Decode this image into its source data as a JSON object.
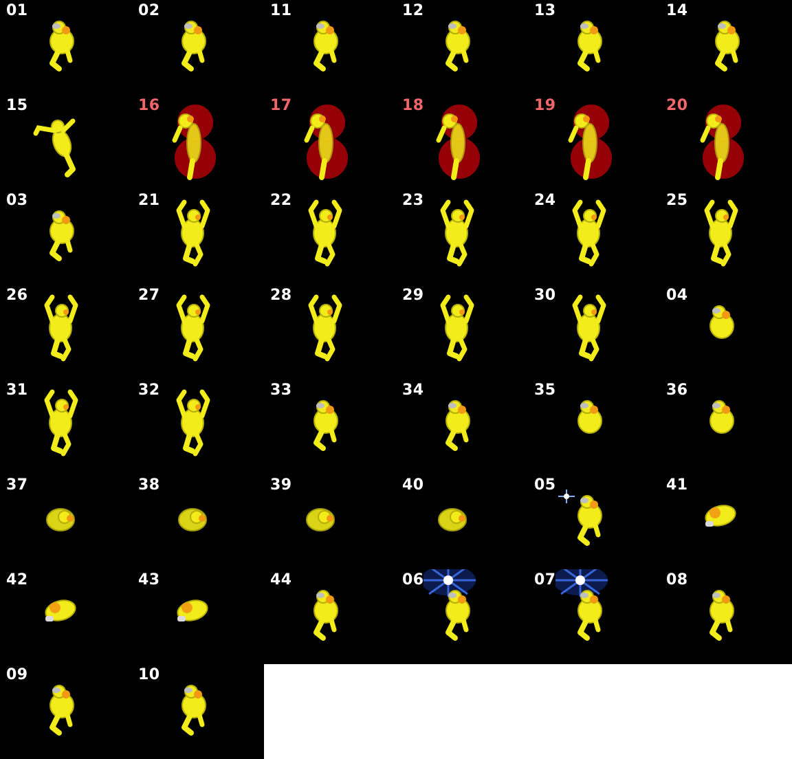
{
  "sheet": {
    "background": "#000000",
    "colors": {
      "normal_label": "#ffffff",
      "hit_label": "#f0666b",
      "body": "#f2ec1a",
      "body_shade": "#b6ae0a",
      "head_accent": "#f39a14",
      "hitbox": "#c8000a",
      "flash": "#3d6de8"
    },
    "frames": [
      {
        "label": "01",
        "pose": "crouch",
        "effect": "none"
      },
      {
        "label": "02",
        "pose": "crouch",
        "effect": "none"
      },
      {
        "label": "11",
        "pose": "crouch",
        "effect": "none"
      },
      {
        "label": "12",
        "pose": "crouch",
        "effect": "none"
      },
      {
        "label": "13",
        "pose": "crouch",
        "effect": "none"
      },
      {
        "label": "14",
        "pose": "crouch-lean",
        "effect": "none"
      },
      {
        "label": "15",
        "pose": "reach",
        "effect": "none"
      },
      {
        "label": "16",
        "pose": "stand",
        "effect": "hitbox"
      },
      {
        "label": "17",
        "pose": "stand",
        "effect": "hitbox"
      },
      {
        "label": "18",
        "pose": "stand",
        "effect": "hitbox"
      },
      {
        "label": "19",
        "pose": "stand",
        "effect": "hitbox"
      },
      {
        "label": "20",
        "pose": "stand",
        "effect": "hitbox"
      },
      {
        "label": "03",
        "pose": "crouch",
        "effect": "none"
      },
      {
        "label": "21",
        "pose": "arms-up",
        "effect": "none"
      },
      {
        "label": "22",
        "pose": "arms-up",
        "effect": "none"
      },
      {
        "label": "23",
        "pose": "arms-up",
        "effect": "none"
      },
      {
        "label": "24",
        "pose": "arms-up",
        "effect": "none"
      },
      {
        "label": "25",
        "pose": "arms-up",
        "effect": "none"
      },
      {
        "label": "26",
        "pose": "arms-up",
        "effect": "none"
      },
      {
        "label": "27",
        "pose": "arms-up",
        "effect": "none"
      },
      {
        "label": "28",
        "pose": "arms-up",
        "effect": "none"
      },
      {
        "label": "29",
        "pose": "arms-up",
        "effect": "none"
      },
      {
        "label": "30",
        "pose": "arms-up",
        "effect": "none"
      },
      {
        "label": "04",
        "pose": "curl",
        "effect": "none"
      },
      {
        "label": "31",
        "pose": "arms-up",
        "effect": "none"
      },
      {
        "label": "32",
        "pose": "arms-up",
        "effect": "none"
      },
      {
        "label": "33",
        "pose": "crouch",
        "effect": "none"
      },
      {
        "label": "34",
        "pose": "crouch",
        "effect": "none"
      },
      {
        "label": "35",
        "pose": "curl",
        "effect": "none"
      },
      {
        "label": "36",
        "pose": "curl",
        "effect": "none"
      },
      {
        "label": "37",
        "pose": "ball",
        "effect": "none"
      },
      {
        "label": "38",
        "pose": "ball",
        "effect": "none"
      },
      {
        "label": "39",
        "pose": "ball-side",
        "effect": "none"
      },
      {
        "label": "40",
        "pose": "ball-side",
        "effect": "none"
      },
      {
        "label": "05",
        "pose": "crouch",
        "effect": "spark"
      },
      {
        "label": "41",
        "pose": "roll",
        "effect": "none"
      },
      {
        "label": "42",
        "pose": "roll",
        "effect": "none"
      },
      {
        "label": "43",
        "pose": "roll",
        "effect": "none"
      },
      {
        "label": "44",
        "pose": "crouch",
        "effect": "none"
      },
      {
        "label": "06",
        "pose": "crouch",
        "effect": "flash"
      },
      {
        "label": "07",
        "pose": "crouch",
        "effect": "flash"
      },
      {
        "label": "08",
        "pose": "crouch",
        "effect": "none"
      },
      {
        "label": "09",
        "pose": "crouch",
        "effect": "none"
      },
      {
        "label": "10",
        "pose": "crouch",
        "effect": "none"
      }
    ]
  }
}
